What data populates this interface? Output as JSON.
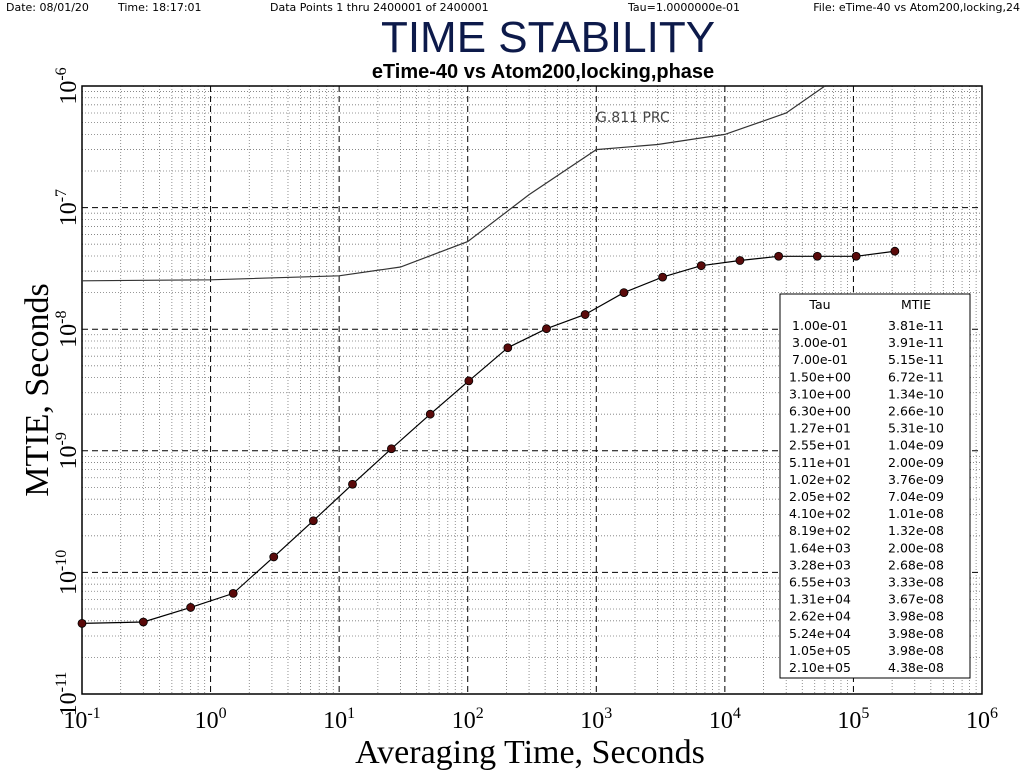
{
  "header": {
    "date_label": "Date: 08/01/20",
    "time_label": "Time: 18:17:01",
    "points_label": "Data Points 1 thru 2400001 of 2400001",
    "tau_label": "Tau=1.0000000e-01",
    "file_label": "File: eTime-40 vs Atom200,locking,24"
  },
  "chart_data": {
    "type": "line",
    "title": "TIME STABILITY",
    "subtitle": "eTime-40 vs Atom200,locking,phase",
    "xlabel": "Averaging Time, Seconds",
    "ylabel": "MTIE, Seconds",
    "x_scale": "log",
    "y_scale": "log",
    "xlim": [
      0.1,
      1000000
    ],
    "ylim": [
      1e-11,
      1e-06
    ],
    "grid": true,
    "x_ticks": [
      {
        "base": "10",
        "exp": "-1"
      },
      {
        "base": "10",
        "exp": "0"
      },
      {
        "base": "10",
        "exp": "1"
      },
      {
        "base": "10",
        "exp": "2"
      },
      {
        "base": "10",
        "exp": "3"
      },
      {
        "base": "10",
        "exp": "4"
      },
      {
        "base": "10",
        "exp": "5"
      },
      {
        "base": "10",
        "exp": "6"
      }
    ],
    "y_ticks": [
      {
        "base": "10",
        "exp": "-11"
      },
      {
        "base": "10",
        "exp": "-10"
      },
      {
        "base": "10",
        "exp": "-9"
      },
      {
        "base": "10",
        "exp": "-8"
      },
      {
        "base": "10",
        "exp": "-7"
      },
      {
        "base": "10",
        "exp": "-6"
      }
    ],
    "annotation": "G.811 PRC",
    "mask": {
      "x": [
        0.1,
        1,
        10,
        30,
        100,
        300,
        1000,
        3000,
        10000,
        30000,
        60000
      ],
      "y": [
        2.5e-08,
        2.55e-08,
        2.75e-08,
        3.25e-08,
        5.25e-08,
        1.28e-07,
        3e-07,
        3.3e-07,
        4e-07,
        6e-07,
        1e-06
      ]
    },
    "series": [
      {
        "tau": [
          0.1,
          0.3,
          0.7,
          1.5,
          3.1,
          6.3,
          12.7,
          25.5,
          51.1,
          102,
          205,
          410,
          819,
          1640,
          3280,
          6550,
          13100,
          26200,
          52400,
          105000,
          210000
        ],
        "mtie": [
          3.81e-11,
          3.91e-11,
          5.15e-11,
          6.72e-11,
          1.34e-10,
          2.66e-10,
          5.31e-10,
          1.04e-09,
          2e-09,
          3.76e-09,
          7.04e-09,
          1.01e-08,
          1.32e-08,
          2e-08,
          2.68e-08,
          3.33e-08,
          3.67e-08,
          3.98e-08,
          3.98e-08,
          3.98e-08,
          4.38e-08
        ]
      }
    ],
    "table": {
      "headers": [
        "Tau",
        "MTIE"
      ],
      "rows": [
        [
          "1.00e-01",
          "3.81e-11"
        ],
        [
          "3.00e-01",
          "3.91e-11"
        ],
        [
          "7.00e-01",
          "5.15e-11"
        ],
        [
          "1.50e+00",
          "6.72e-11"
        ],
        [
          "3.10e+00",
          "1.34e-10"
        ],
        [
          "6.30e+00",
          "2.66e-10"
        ],
        [
          "1.27e+01",
          "5.31e-10"
        ],
        [
          "2.55e+01",
          "1.04e-09"
        ],
        [
          "5.11e+01",
          "2.00e-09"
        ],
        [
          "1.02e+02",
          "3.76e-09"
        ],
        [
          "2.05e+02",
          "7.04e-09"
        ],
        [
          "4.10e+02",
          "1.01e-08"
        ],
        [
          "8.19e+02",
          "1.32e-08"
        ],
        [
          "1.64e+03",
          "2.00e-08"
        ],
        [
          "3.28e+03",
          "2.68e-08"
        ],
        [
          "6.55e+03",
          "3.33e-08"
        ],
        [
          "1.31e+04",
          "3.67e-08"
        ],
        [
          "2.62e+04",
          "3.98e-08"
        ],
        [
          "5.24e+04",
          "3.98e-08"
        ],
        [
          "1.05e+05",
          "3.98e-08"
        ],
        [
          "2.10e+05",
          "4.38e-08"
        ]
      ]
    },
    "colors": {
      "title": "#0d1a4a",
      "marker": "#5a0a0a",
      "line": "#000000",
      "mask_line": "#333333"
    }
  }
}
